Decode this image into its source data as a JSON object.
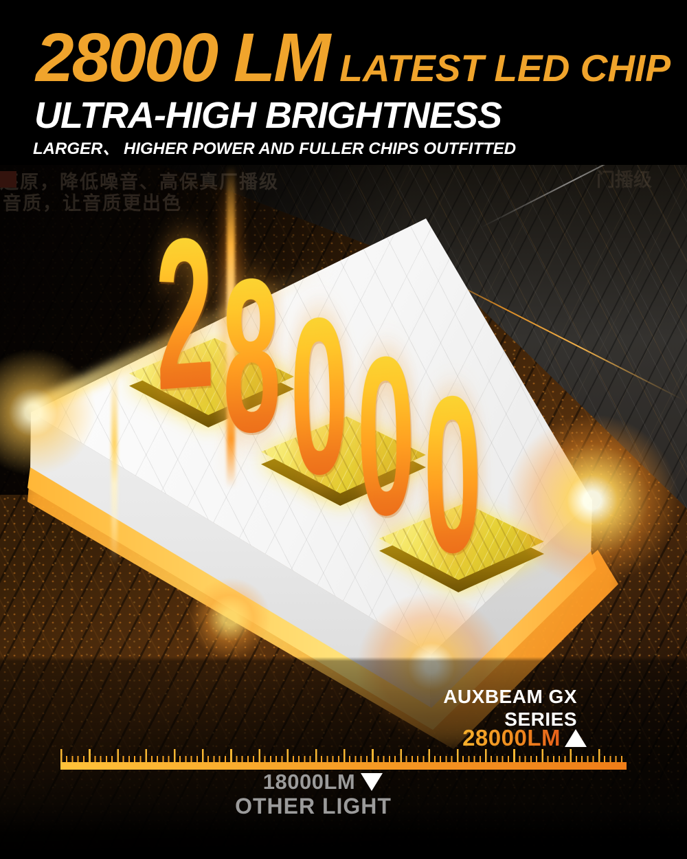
{
  "header": {
    "headline_value": "28000 LM",
    "headline_suffix": "LATEST LED CHIP",
    "subheadline": "ULTRA-HIGH BRIGHTNESS",
    "tagline": "LARGER、 HIGHER POWER AND FULLER CHIPS OUTFITTED",
    "accent_color": "#F0A42C"
  },
  "background_text": {
    "line1": "还原，降低噪音、高保真厂播级",
    "line2": "音质，让音质更出色",
    "right_fragment": "门播级"
  },
  "hero": {
    "lumen_value": "28000",
    "digits": [
      "2",
      "8",
      "0",
      "0",
      "0"
    ],
    "digit_gradient_top": "#F6E13A",
    "digit_gradient_bottom": "#E85E16"
  },
  "comparison": {
    "product_line1": "AUXBEAM GX",
    "product_line2": "SERIES",
    "product_value": "28000LM",
    "product_marker": "up-triangle",
    "other_value": "18000LM",
    "other_marker": "down-triangle",
    "other_label": "OTHER LIGHT",
    "value_color_start": "#F6B02C",
    "value_color_end": "#E8601A",
    "ruler_color_start": "#FFC23A",
    "ruler_color_end": "#EF7D18",
    "other_text_color": "#9B9B9B"
  }
}
